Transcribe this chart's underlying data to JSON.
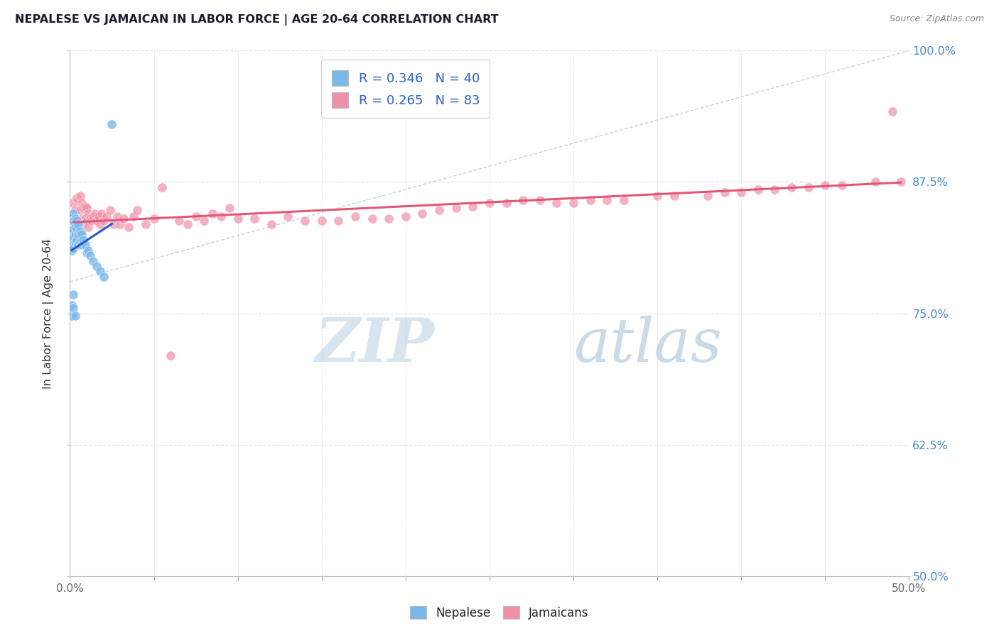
{
  "title": "NEPALESE VS JAMAICAN IN LABOR FORCE | AGE 20-64 CORRELATION CHART",
  "source_text": "Source: ZipAtlas.com",
  "ylabel": "In Labor Force | Age 20-64",
  "xlim": [
    0.0,
    0.5
  ],
  "ylim": [
    0.5,
    1.0
  ],
  "xticks": [
    0.0,
    0.05,
    0.1,
    0.15,
    0.2,
    0.25,
    0.3,
    0.35,
    0.4,
    0.45,
    0.5
  ],
  "xticklabels_show": [
    "0.0%",
    "",
    "",
    "",
    "",
    "",
    "",
    "",
    "",
    "",
    "50.0%"
  ],
  "yticks": [
    0.5,
    0.625,
    0.75,
    0.875,
    1.0
  ],
  "yticklabels_right": [
    "50.0%",
    "62.5%",
    "75.0%",
    "87.5%",
    "100.0%"
  ],
  "nepalese_color": "#7ab8ea",
  "jamaican_color": "#f090a8",
  "nepalese_line_color": "#2858c8",
  "jamaican_line_color": "#e05878",
  "diagonal_color": "#b8c8d8",
  "watermark_zip": "ZIP",
  "watermark_atlas": "atlas",
  "watermark_color_zip": "#c8daea",
  "watermark_color_atlas": "#a0b8c8",
  "legend_label_nep": "R = 0.346   N = 40",
  "legend_label_jam": "R = 0.265   N = 83",
  "bottom_legend_nep": "Nepalese",
  "bottom_legend_jam": "Jamaicans",
  "tick_color_y_right": "#4488cc",
  "tick_color_x": "#666666",
  "grid_color": "#dde4ef",
  "title_color": "#1a1a2e",
  "source_color": "#888888",
  "nep_x": [
    0.001,
    0.001,
    0.001,
    0.001,
    0.001,
    0.001,
    0.002,
    0.002,
    0.002,
    0.002,
    0.002,
    0.003,
    0.003,
    0.003,
    0.003,
    0.004,
    0.004,
    0.004,
    0.005,
    0.005,
    0.005,
    0.006,
    0.006,
    0.007,
    0.007,
    0.008,
    0.009,
    0.01,
    0.011,
    0.012,
    0.014,
    0.016,
    0.018,
    0.02,
    0.001,
    0.001,
    0.002,
    0.002,
    0.003,
    0.025
  ],
  "nep_y": [
    0.84,
    0.835,
    0.83,
    0.825,
    0.818,
    0.81,
    0.845,
    0.838,
    0.83,
    0.822,
    0.812,
    0.84,
    0.832,
    0.825,
    0.818,
    0.838,
    0.83,
    0.82,
    0.835,
    0.825,
    0.815,
    0.828,
    0.818,
    0.825,
    0.815,
    0.82,
    0.815,
    0.808,
    0.81,
    0.805,
    0.8,
    0.795,
    0.79,
    0.785,
    0.758,
    0.748,
    0.768,
    0.755,
    0.748,
    0.93
  ],
  "jam_x": [
    0.002,
    0.003,
    0.004,
    0.005,
    0.006,
    0.006,
    0.007,
    0.007,
    0.008,
    0.008,
    0.009,
    0.009,
    0.01,
    0.01,
    0.011,
    0.011,
    0.012,
    0.013,
    0.014,
    0.015,
    0.016,
    0.017,
    0.018,
    0.019,
    0.02,
    0.022,
    0.024,
    0.026,
    0.028,
    0.03,
    0.032,
    0.035,
    0.038,
    0.04,
    0.045,
    0.05,
    0.06,
    0.07,
    0.08,
    0.09,
    0.1,
    0.12,
    0.14,
    0.16,
    0.18,
    0.2,
    0.22,
    0.24,
    0.26,
    0.28,
    0.3,
    0.32,
    0.35,
    0.38,
    0.4,
    0.42,
    0.44,
    0.46,
    0.48,
    0.49,
    0.495,
    0.055,
    0.065,
    0.075,
    0.085,
    0.095,
    0.11,
    0.13,
    0.15,
    0.17,
    0.19,
    0.21,
    0.23,
    0.25,
    0.27,
    0.29,
    0.31,
    0.33,
    0.36,
    0.39,
    0.41,
    0.43,
    0.45
  ],
  "jam_y": [
    0.855,
    0.848,
    0.86,
    0.838,
    0.848,
    0.862,
    0.84,
    0.855,
    0.835,
    0.85,
    0.84,
    0.852,
    0.838,
    0.85,
    0.832,
    0.845,
    0.84,
    0.838,
    0.842,
    0.845,
    0.838,
    0.842,
    0.835,
    0.845,
    0.838,
    0.842,
    0.848,
    0.835,
    0.842,
    0.835,
    0.84,
    0.832,
    0.842,
    0.848,
    0.835,
    0.84,
    0.71,
    0.835,
    0.838,
    0.842,
    0.84,
    0.835,
    0.838,
    0.838,
    0.84,
    0.842,
    0.848,
    0.852,
    0.855,
    0.858,
    0.855,
    0.858,
    0.862,
    0.862,
    0.865,
    0.868,
    0.87,
    0.872,
    0.875,
    0.942,
    0.875,
    0.87,
    0.838,
    0.842,
    0.845,
    0.85,
    0.84,
    0.842,
    0.838,
    0.842,
    0.84,
    0.845,
    0.85,
    0.855,
    0.858,
    0.855,
    0.858,
    0.858,
    0.862,
    0.865,
    0.868,
    0.87,
    0.872
  ]
}
